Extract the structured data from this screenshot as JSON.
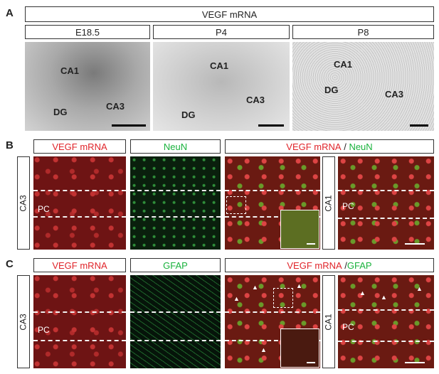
{
  "panel_letters": {
    "a": "A",
    "b": "B",
    "c": "C"
  },
  "section_a": {
    "title": "VEGF  mRNA",
    "stages": [
      "E18.5",
      "P4",
      "P8"
    ],
    "regions": {
      "ca1": "CA1",
      "ca3": "CA3",
      "dg": "DG"
    }
  },
  "section_b": {
    "headers": {
      "vegf": "VEGF mRNA",
      "neun": "NeuN",
      "merge_sep": " / "
    },
    "side_labels": {
      "left": "CA3",
      "right": "CA1"
    },
    "pc": "PC"
  },
  "section_c": {
    "headers": {
      "vegf": "VEGF mRNA",
      "gfap": "GFAP",
      "merge_sep": " /"
    },
    "side_labels": {
      "left": "CA3",
      "right": "CA1"
    },
    "pc": "PC"
  },
  "colors": {
    "vegf": "#e0242a",
    "neun": "#19b23c",
    "gfap": "#19b23c"
  }
}
